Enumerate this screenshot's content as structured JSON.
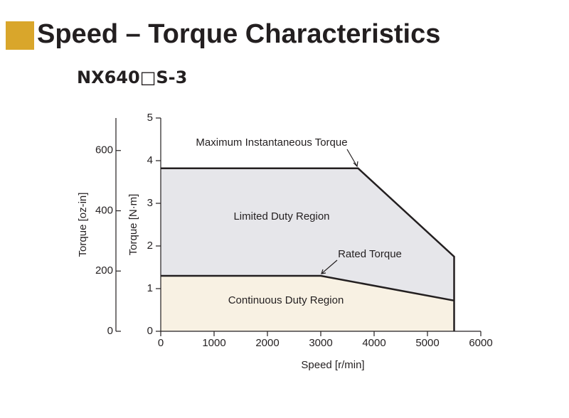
{
  "chart_data": {
    "type": "area",
    "title": "Speed – Torque Characteristics",
    "subtitle": "NX640□S-3",
    "x_label": "Speed [r/min]",
    "y_label": "Torque [N·m]",
    "y2_label": "Torque [oz-in]",
    "xlim": [
      0,
      6000
    ],
    "xticks": [
      0,
      1000,
      2000,
      3000,
      4000,
      5000,
      6000
    ],
    "ylim": [
      0,
      5
    ],
    "yticks": [
      0,
      1,
      2,
      3,
      4,
      5
    ],
    "y2lim": [
      0,
      708
    ],
    "y2ticks": [
      0,
      200,
      400,
      600
    ],
    "series": [
      {
        "name": "Maximum Instantaneous Torque",
        "color": "#231f20",
        "fill": "#e6e6ea",
        "x": [
          0,
          3700,
          5500,
          5500
        ],
        "values": [
          3.82,
          3.82,
          1.75,
          0
        ]
      },
      {
        "name": "Rated Torque",
        "color": "#231f20",
        "fill": "#f8f1e3",
        "x": [
          0,
          3000,
          5500
        ],
        "values": [
          1.3,
          1.3,
          0.72
        ]
      }
    ],
    "annotations": [
      "Limited Duty Region",
      "Continuous Duty Region"
    ],
    "accent_color": "#d9a62b"
  }
}
